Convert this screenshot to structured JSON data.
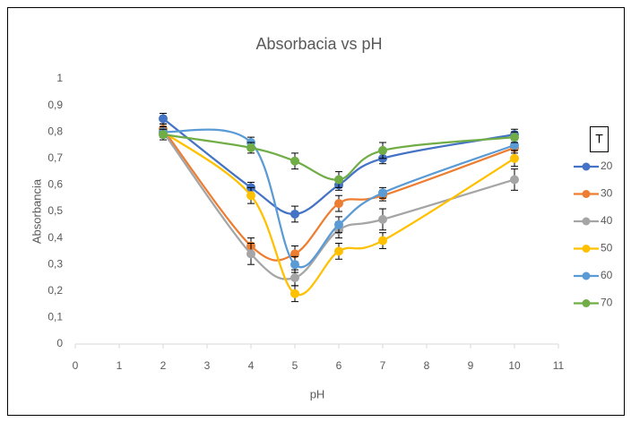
{
  "chart_data": {
    "type": "line",
    "title": "Absorbacia vs pH",
    "x_label": "pH",
    "y_label": "Absorbancia",
    "legend_title": "T",
    "legend_position": "right",
    "grid": false,
    "smooth": true,
    "x": [
      2,
      4,
      5,
      6,
      7,
      10
    ],
    "xlim": [
      0,
      11
    ],
    "xticks": [
      0,
      1,
      2,
      3,
      4,
      5,
      6,
      7,
      8,
      9,
      10,
      11
    ],
    "ylim": [
      0,
      1
    ],
    "yticks": [
      0,
      {
        "value": 0.1,
        "label": "0,1"
      },
      {
        "value": 0.2,
        "label": "0,2"
      },
      {
        "value": 0.3,
        "label": "0,3"
      },
      {
        "value": 0.4,
        "label": "0,4"
      },
      {
        "value": 0.5,
        "label": "0,5"
      },
      {
        "value": 0.6,
        "label": "0,6"
      },
      {
        "value": 0.7,
        "label": "0,7"
      },
      {
        "value": 0.8,
        "label": "0,8"
      },
      {
        "value": 0.9,
        "label": "0,9"
      },
      1
    ],
    "series": [
      {
        "name": "20",
        "color": "#4472c4",
        "values": [
          0.85,
          0.59,
          0.49,
          0.6,
          0.7,
          0.79
        ],
        "errors": [
          0.02,
          0.02,
          0.03,
          0.02,
          0.02,
          0.02
        ]
      },
      {
        "name": "30",
        "color": "#ed7d31",
        "values": [
          0.81,
          0.37,
          0.34,
          0.53,
          0.56,
          0.74
        ],
        "errors": [
          0.02,
          0.03,
          0.03,
          0.03,
          0.02,
          0.02
        ]
      },
      {
        "name": "40",
        "color": "#a5a5a5",
        "values": [
          0.8,
          0.34,
          0.25,
          0.43,
          0.47,
          0.62
        ],
        "errors": [
          0.02,
          0.04,
          0.03,
          0.03,
          0.04,
          0.04
        ]
      },
      {
        "name": "50",
        "color": "#ffc000",
        "values": [
          0.8,
          0.56,
          0.19,
          0.35,
          0.39,
          0.7
        ],
        "errors": [
          0.02,
          0.03,
          0.03,
          0.03,
          0.03,
          0.03
        ]
      },
      {
        "name": "60",
        "color": "#5b9bd5",
        "values": [
          0.8,
          0.76,
          0.3,
          0.45,
          0.57,
          0.75
        ],
        "errors": [
          0.02,
          0.02,
          0.03,
          0.03,
          0.02,
          0.02
        ]
      },
      {
        "name": "70",
        "color": "#70ad47",
        "values": [
          0.79,
          0.74,
          0.69,
          0.62,
          0.73,
          0.78
        ],
        "errors": [
          0.02,
          0.02,
          0.03,
          0.03,
          0.03,
          0.02
        ]
      }
    ]
  }
}
